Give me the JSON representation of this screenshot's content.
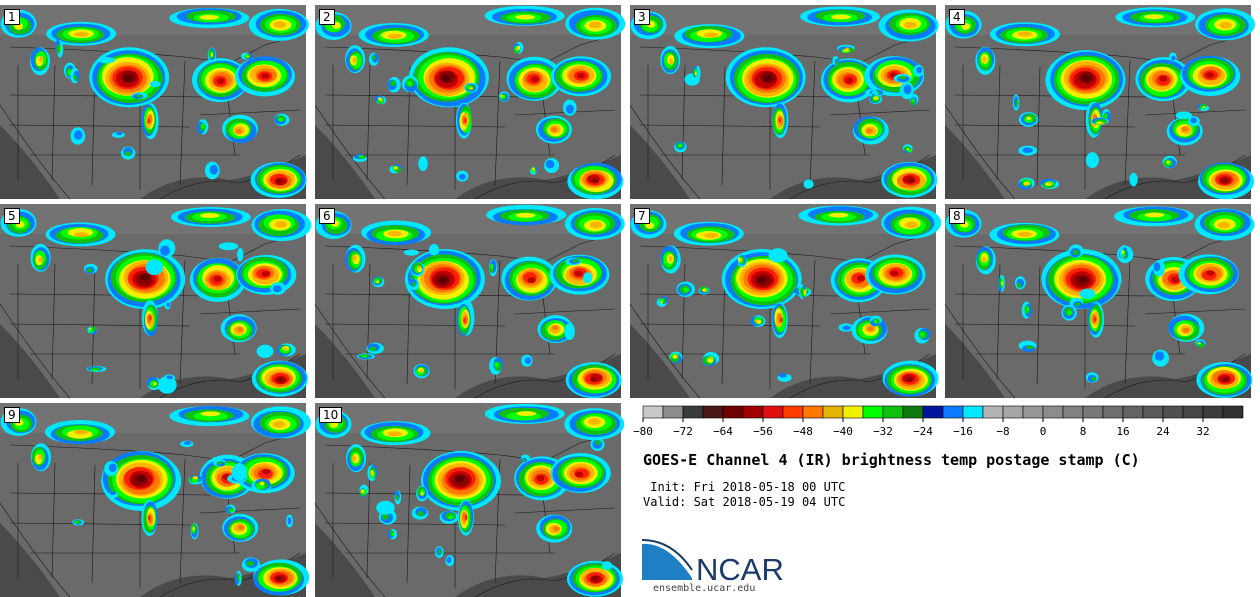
{
  "panels": [
    {
      "label": "1"
    },
    {
      "label": "2"
    },
    {
      "label": "3"
    },
    {
      "label": "4"
    },
    {
      "label": "5"
    },
    {
      "label": "6"
    },
    {
      "label": "7"
    },
    {
      "label": "8"
    },
    {
      "label": "9"
    },
    {
      "label": "10"
    }
  ],
  "colorbar": {
    "ticks": [
      "−80",
      "−72",
      "−64",
      "−56",
      "−48",
      "−40",
      "−32",
      "−24",
      "−16",
      "−8",
      "0",
      "8",
      "16",
      "24",
      "32"
    ],
    "colors": [
      "#c8c8c8",
      "#8c8c8c",
      "#3a3a3a",
      "#4a1818",
      "#6e0000",
      "#a00000",
      "#e01010",
      "#ff3c00",
      "#ff7800",
      "#e0b400",
      "#f0f000",
      "#00ff00",
      "#10c010",
      "#107a10",
      "#0014a0",
      "#0a7aff",
      "#00e8ff",
      "#b4b4b4",
      "#a6a6a6",
      "#989898",
      "#8c8c8c",
      "#828282",
      "#787878",
      "#6e6e6e",
      "#646464",
      "#5a5a5a",
      "#505050",
      "#464646",
      "#3c3c3c",
      "#323232"
    ]
  },
  "title": "GOES-E Channel 4 (IR) brightness temp postage stamp (C)",
  "init": " Init: Fri 2018-05-18 00 UTC",
  "valid": "Valid: Sat 2018-05-19 04 UTC",
  "logo": {
    "text": "NCAR",
    "color": "#1b3a6b",
    "accent": "#1f7fc4"
  },
  "website": "ensemble.ucar.edu"
}
